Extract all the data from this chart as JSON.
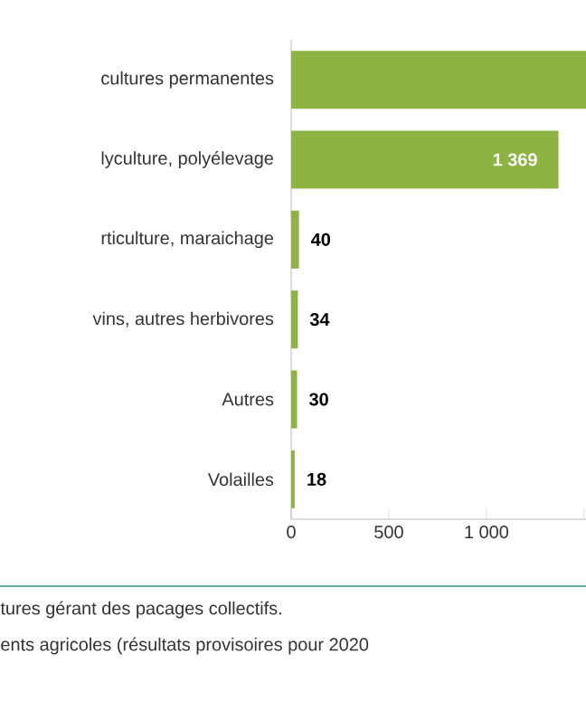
{
  "chart_data": {
    "type": "bar",
    "orientation": "horizontal",
    "categories": [
      "cultures permanentes",
      "lyculture, polyélevage",
      "rticulture, maraichage",
      "vins, autres herbivores",
      "Autres",
      "Volailles"
    ],
    "values": [
      1510,
      1369,
      40,
      34,
      30,
      18
    ],
    "value_labels": [
      null,
      "1 369",
      "40",
      "34",
      "30",
      "18"
    ],
    "color": "#8db443",
    "xlim": [
      0,
      1510
    ],
    "xticks": [
      0,
      500,
      {
        "value": 1000,
        "label": "1 000"
      },
      {
        "value": 1500,
        "label": null
      }
    ],
    "grid": false,
    "annotations": [
      "tures gérant des pacages collectifs.",
      "ents agricoles (résultats provisoires pour 2020"
    ]
  }
}
